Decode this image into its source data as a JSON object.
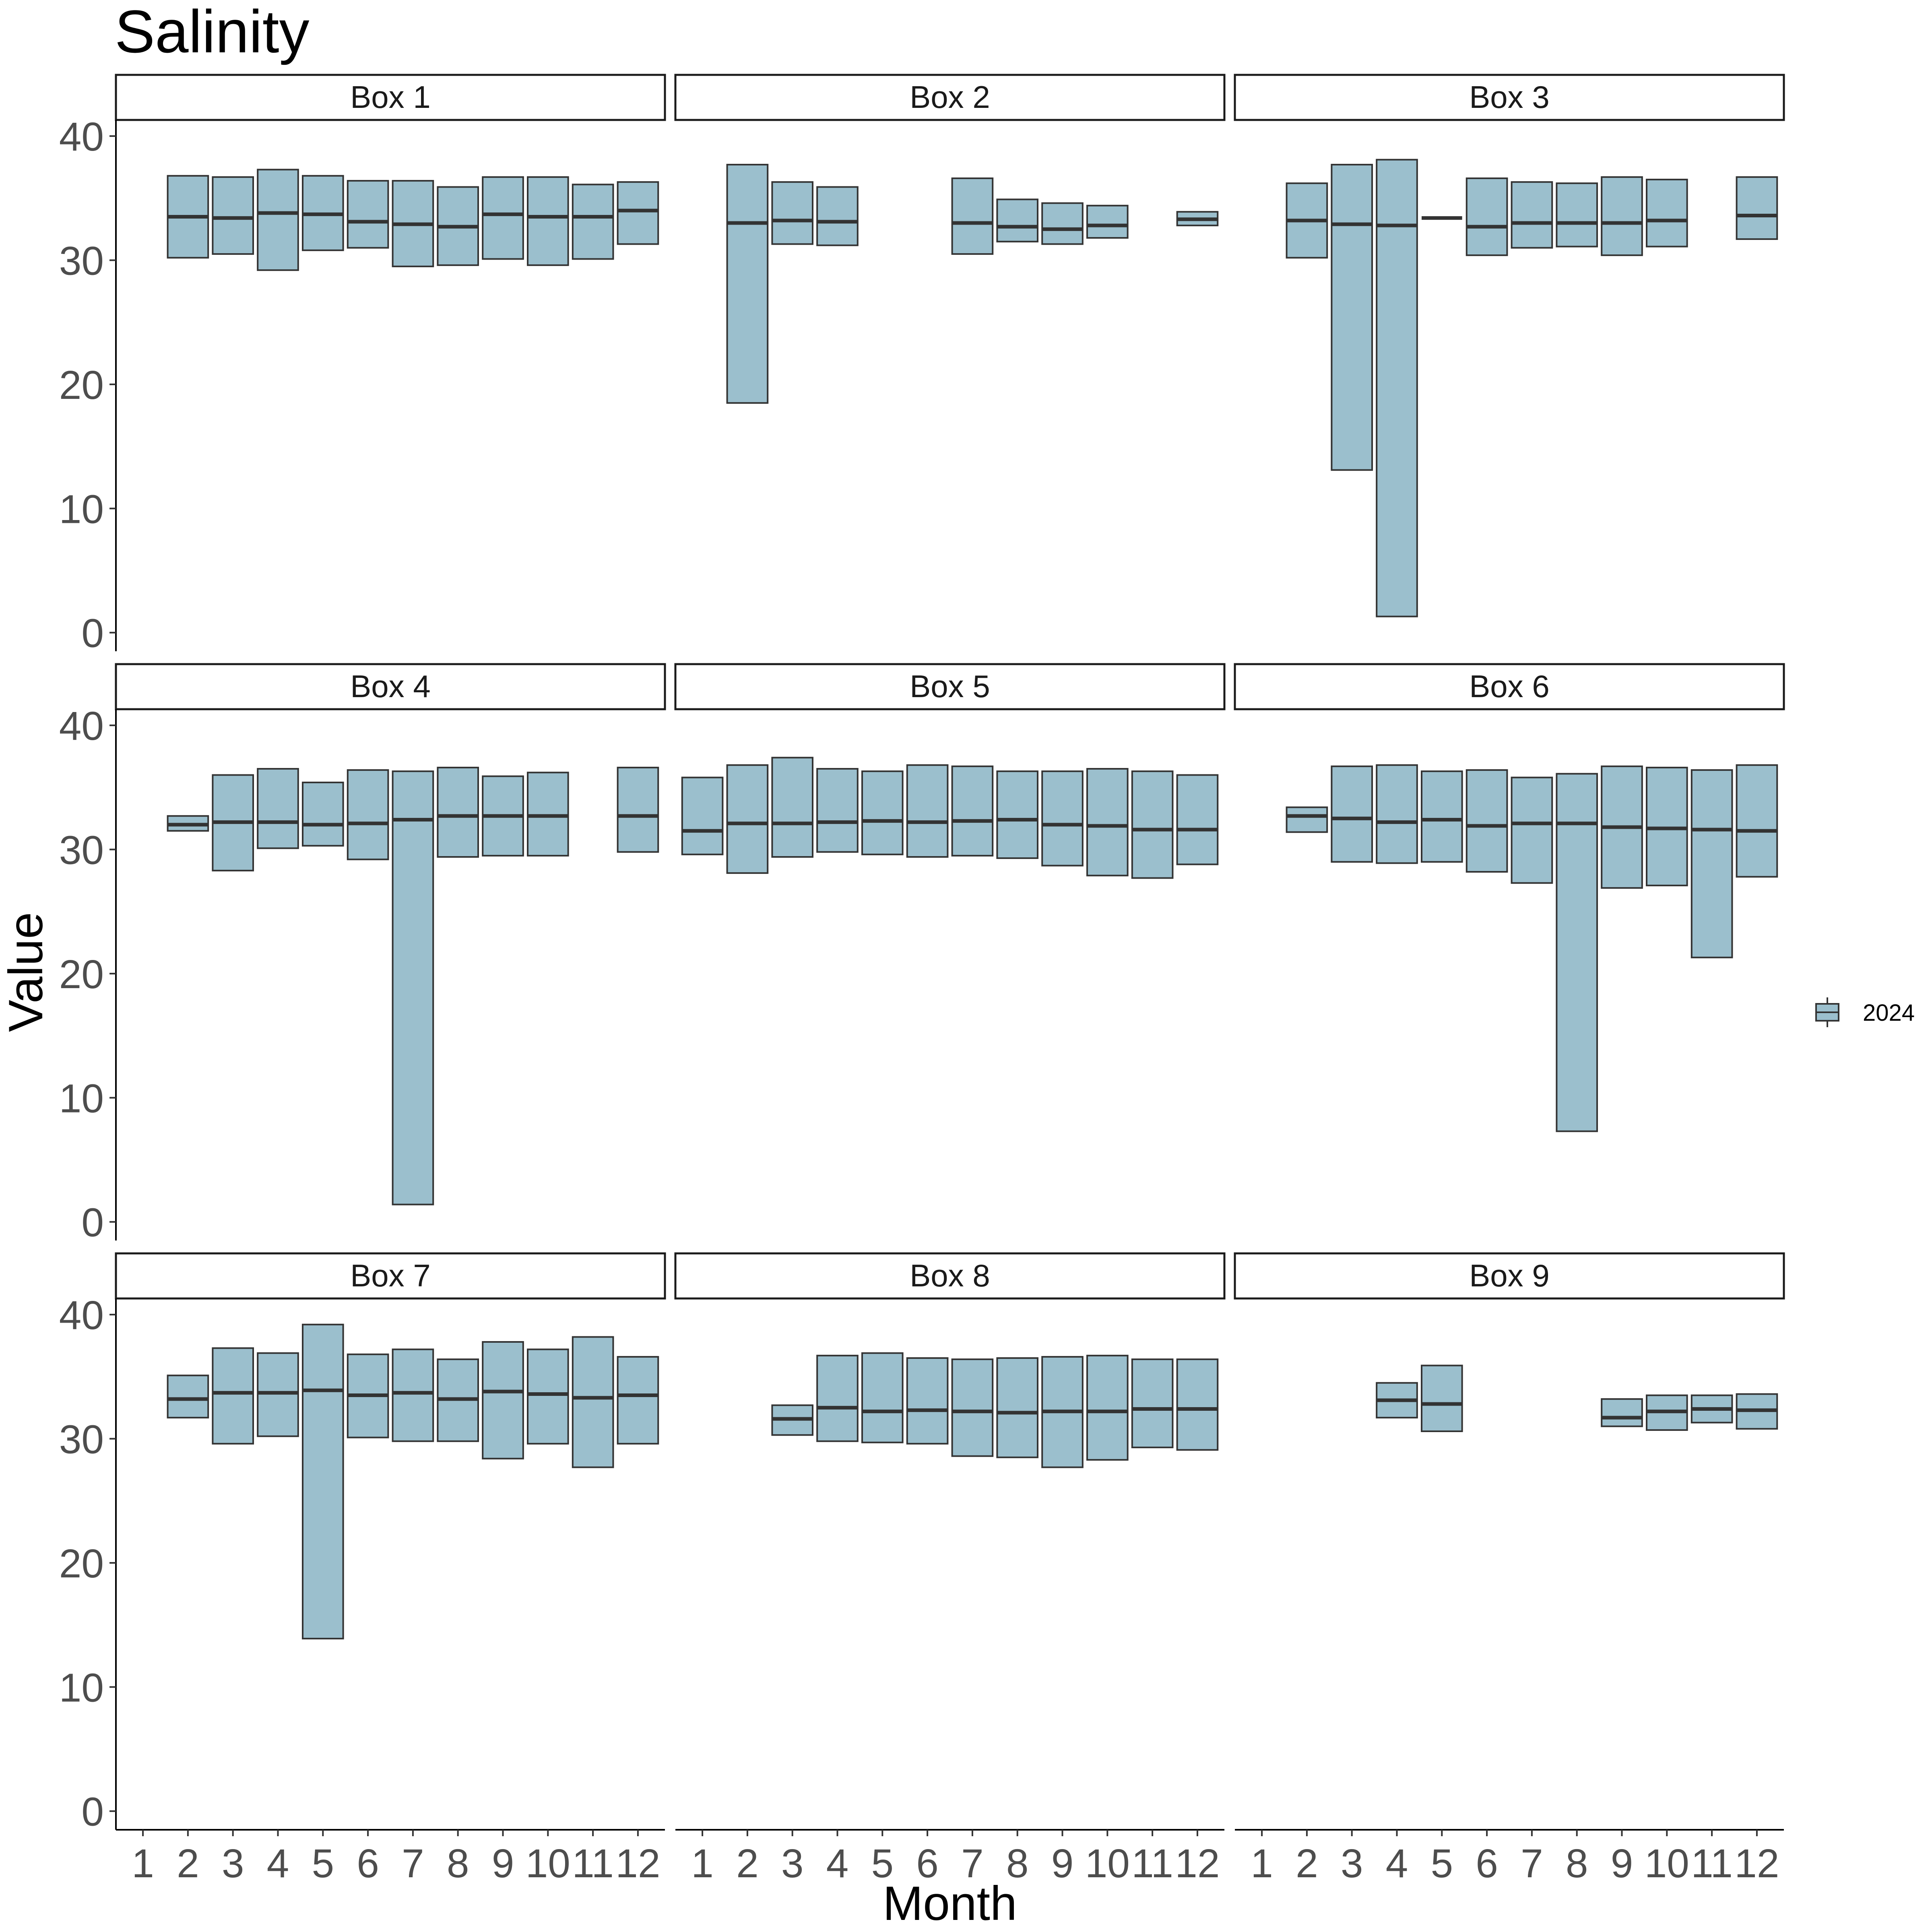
{
  "chart_data": {
    "type": "boxplot",
    "title": "Salinity",
    "xlabel": "Month",
    "ylabel": "Value",
    "categories": [
      "1",
      "2",
      "3",
      "4",
      "5",
      "6",
      "7",
      "8",
      "9",
      "10",
      "11",
      "12"
    ],
    "ylim": [
      -1.5,
      41.3
    ],
    "yticks": [
      0,
      10,
      20,
      30,
      40
    ],
    "legend": {
      "placement": "right",
      "entries": [
        {
          "name": "2024",
          "color": "#9bbfcd"
        }
      ]
    },
    "colors": {
      "box_fill": "#9bbfcd",
      "box_stroke": "#333333"
    },
    "grid": false,
    "facets": [
      {
        "label": "Box 1",
        "boxes": [
          {
            "month": 2,
            "lower": 30.2,
            "median": 33.5,
            "upper": 36.8
          },
          {
            "month": 3,
            "lower": 30.5,
            "median": 33.4,
            "upper": 36.7
          },
          {
            "month": 4,
            "lower": 29.2,
            "median": 33.8,
            "upper": 37.3
          },
          {
            "month": 5,
            "lower": 30.8,
            "median": 33.7,
            "upper": 36.8
          },
          {
            "month": 6,
            "lower": 31.0,
            "median": 33.1,
            "upper": 36.4
          },
          {
            "month": 7,
            "lower": 29.5,
            "median": 32.9,
            "upper": 36.4
          },
          {
            "month": 8,
            "lower": 29.6,
            "median": 32.7,
            "upper": 35.9
          },
          {
            "month": 9,
            "lower": 30.1,
            "median": 33.7,
            "upper": 36.7
          },
          {
            "month": 10,
            "lower": 29.6,
            "median": 33.5,
            "upper": 36.7
          },
          {
            "month": 11,
            "lower": 30.1,
            "median": 33.5,
            "upper": 36.1
          },
          {
            "month": 12,
            "lower": 31.3,
            "median": 34.0,
            "upper": 36.3
          }
        ]
      },
      {
        "label": "Box 2",
        "boxes": [
          {
            "month": 2,
            "lower": 18.5,
            "median": 33.0,
            "upper": 37.7
          },
          {
            "month": 3,
            "lower": 31.3,
            "median": 33.2,
            "upper": 36.3
          },
          {
            "month": 4,
            "lower": 31.2,
            "median": 33.1,
            "upper": 35.9
          },
          {
            "month": 7,
            "lower": 30.5,
            "median": 33.0,
            "upper": 36.6
          },
          {
            "month": 8,
            "lower": 31.5,
            "median": 32.7,
            "upper": 34.9
          },
          {
            "month": 9,
            "lower": 31.3,
            "median": 32.5,
            "upper": 34.6
          },
          {
            "month": 10,
            "lower": 31.8,
            "median": 32.8,
            "upper": 34.4
          },
          {
            "month": 12,
            "lower": 32.8,
            "median": 33.3,
            "upper": 33.9
          }
        ]
      },
      {
        "label": "Box 3",
        "boxes": [
          {
            "month": 2,
            "lower": 30.2,
            "median": 33.2,
            "upper": 36.2
          },
          {
            "month": 3,
            "lower": 13.1,
            "median": 32.9,
            "upper": 37.7
          },
          {
            "month": 4,
            "lower": 1.3,
            "median": 32.8,
            "upper": 38.1
          },
          {
            "month": 5,
            "lower": 33.4,
            "median": 33.4,
            "upper": 33.4
          },
          {
            "month": 6,
            "lower": 30.4,
            "median": 32.7,
            "upper": 36.6
          },
          {
            "month": 7,
            "lower": 31.0,
            "median": 33.0,
            "upper": 36.3
          },
          {
            "month": 8,
            "lower": 31.1,
            "median": 33.0,
            "upper": 36.2
          },
          {
            "month": 9,
            "lower": 30.4,
            "median": 33.0,
            "upper": 36.7
          },
          {
            "month": 10,
            "lower": 31.1,
            "median": 33.2,
            "upper": 36.5
          },
          {
            "month": 12,
            "lower": 31.7,
            "median": 33.6,
            "upper": 36.7
          }
        ]
      },
      {
        "label": "Box 4",
        "boxes": [
          {
            "month": 2,
            "lower": 31.5,
            "median": 32.0,
            "upper": 32.7
          },
          {
            "month": 3,
            "lower": 28.3,
            "median": 32.2,
            "upper": 36.0
          },
          {
            "month": 4,
            "lower": 30.1,
            "median": 32.2,
            "upper": 36.5
          },
          {
            "month": 5,
            "lower": 30.3,
            "median": 32.0,
            "upper": 35.4
          },
          {
            "month": 6,
            "lower": 29.2,
            "median": 32.1,
            "upper": 36.4
          },
          {
            "month": 7,
            "lower": 1.4,
            "median": 32.4,
            "upper": 36.3
          },
          {
            "month": 8,
            "lower": 29.4,
            "median": 32.7,
            "upper": 36.6
          },
          {
            "month": 9,
            "lower": 29.5,
            "median": 32.7,
            "upper": 35.9
          },
          {
            "month": 10,
            "lower": 29.5,
            "median": 32.7,
            "upper": 36.2
          },
          {
            "month": 12,
            "lower": 29.8,
            "median": 32.7,
            "upper": 36.6
          }
        ]
      },
      {
        "label": "Box 5",
        "boxes": [
          {
            "month": 1,
            "lower": 29.6,
            "median": 31.5,
            "upper": 35.8
          },
          {
            "month": 2,
            "lower": 28.1,
            "median": 32.1,
            "upper": 36.8
          },
          {
            "month": 3,
            "lower": 29.4,
            "median": 32.1,
            "upper": 37.4
          },
          {
            "month": 4,
            "lower": 29.8,
            "median": 32.2,
            "upper": 36.5
          },
          {
            "month": 5,
            "lower": 29.6,
            "median": 32.3,
            "upper": 36.3
          },
          {
            "month": 6,
            "lower": 29.4,
            "median": 32.2,
            "upper": 36.8
          },
          {
            "month": 7,
            "lower": 29.5,
            "median": 32.3,
            "upper": 36.7
          },
          {
            "month": 8,
            "lower": 29.3,
            "median": 32.4,
            "upper": 36.3
          },
          {
            "month": 9,
            "lower": 28.7,
            "median": 32.0,
            "upper": 36.3
          },
          {
            "month": 10,
            "lower": 27.9,
            "median": 31.9,
            "upper": 36.5
          },
          {
            "month": 11,
            "lower": 27.7,
            "median": 31.6,
            "upper": 36.3
          },
          {
            "month": 12,
            "lower": 28.8,
            "median": 31.6,
            "upper": 36.0
          }
        ]
      },
      {
        "label": "Box 6",
        "boxes": [
          {
            "month": 2,
            "lower": 31.4,
            "median": 32.7,
            "upper": 33.4
          },
          {
            "month": 3,
            "lower": 29.0,
            "median": 32.5,
            "upper": 36.7
          },
          {
            "month": 4,
            "lower": 28.9,
            "median": 32.2,
            "upper": 36.8
          },
          {
            "month": 5,
            "lower": 29.0,
            "median": 32.4,
            "upper": 36.3
          },
          {
            "month": 6,
            "lower": 28.2,
            "median": 31.9,
            "upper": 36.4
          },
          {
            "month": 7,
            "lower": 27.3,
            "median": 32.1,
            "upper": 35.8
          },
          {
            "month": 8,
            "lower": 7.3,
            "median": 32.1,
            "upper": 36.1
          },
          {
            "month": 9,
            "lower": 26.9,
            "median": 31.8,
            "upper": 36.7
          },
          {
            "month": 10,
            "lower": 27.1,
            "median": 31.7,
            "upper": 36.6
          },
          {
            "month": 11,
            "lower": 21.3,
            "median": 31.6,
            "upper": 36.4
          },
          {
            "month": 12,
            "lower": 27.8,
            "median": 31.5,
            "upper": 36.8
          }
        ]
      },
      {
        "label": "Box 7",
        "boxes": [
          {
            "month": 2,
            "lower": 31.7,
            "median": 33.2,
            "upper": 35.1
          },
          {
            "month": 3,
            "lower": 29.6,
            "median": 33.7,
            "upper": 37.3
          },
          {
            "month": 4,
            "lower": 30.2,
            "median": 33.7,
            "upper": 36.9
          },
          {
            "month": 5,
            "lower": 13.9,
            "median": 33.9,
            "upper": 39.2
          },
          {
            "month": 6,
            "lower": 30.1,
            "median": 33.5,
            "upper": 36.8
          },
          {
            "month": 7,
            "lower": 29.8,
            "median": 33.7,
            "upper": 37.2
          },
          {
            "month": 8,
            "lower": 29.8,
            "median": 33.2,
            "upper": 36.4
          },
          {
            "month": 9,
            "lower": 28.4,
            "median": 33.8,
            "upper": 37.8
          },
          {
            "month": 10,
            "lower": 29.6,
            "median": 33.6,
            "upper": 37.2
          },
          {
            "month": 11,
            "lower": 27.7,
            "median": 33.3,
            "upper": 38.2
          },
          {
            "month": 12,
            "lower": 29.6,
            "median": 33.5,
            "upper": 36.6
          }
        ]
      },
      {
        "label": "Box 8",
        "boxes": [
          {
            "month": 3,
            "lower": 30.3,
            "median": 31.6,
            "upper": 32.7
          },
          {
            "month": 4,
            "lower": 29.8,
            "median": 32.5,
            "upper": 36.7
          },
          {
            "month": 5,
            "lower": 29.7,
            "median": 32.2,
            "upper": 36.9
          },
          {
            "month": 6,
            "lower": 29.6,
            "median": 32.3,
            "upper": 36.5
          },
          {
            "month": 7,
            "lower": 28.6,
            "median": 32.2,
            "upper": 36.4
          },
          {
            "month": 8,
            "lower": 28.5,
            "median": 32.1,
            "upper": 36.5
          },
          {
            "month": 9,
            "lower": 27.7,
            "median": 32.2,
            "upper": 36.6
          },
          {
            "month": 10,
            "lower": 28.3,
            "median": 32.2,
            "upper": 36.7
          },
          {
            "month": 11,
            "lower": 29.3,
            "median": 32.4,
            "upper": 36.4
          },
          {
            "month": 12,
            "lower": 29.1,
            "median": 32.4,
            "upper": 36.4
          }
        ]
      },
      {
        "label": "Box 9",
        "boxes": [
          {
            "month": 4,
            "lower": 31.7,
            "median": 33.1,
            "upper": 34.5
          },
          {
            "month": 5,
            "lower": 30.6,
            "median": 32.8,
            "upper": 35.9
          },
          {
            "month": 9,
            "lower": 31.0,
            "median": 31.7,
            "upper": 33.2
          },
          {
            "month": 10,
            "lower": 30.7,
            "median": 32.2,
            "upper": 33.5
          },
          {
            "month": 11,
            "lower": 31.3,
            "median": 32.4,
            "upper": 33.5
          },
          {
            "month": 12,
            "lower": 30.8,
            "median": 32.3,
            "upper": 33.6
          }
        ]
      }
    ]
  }
}
